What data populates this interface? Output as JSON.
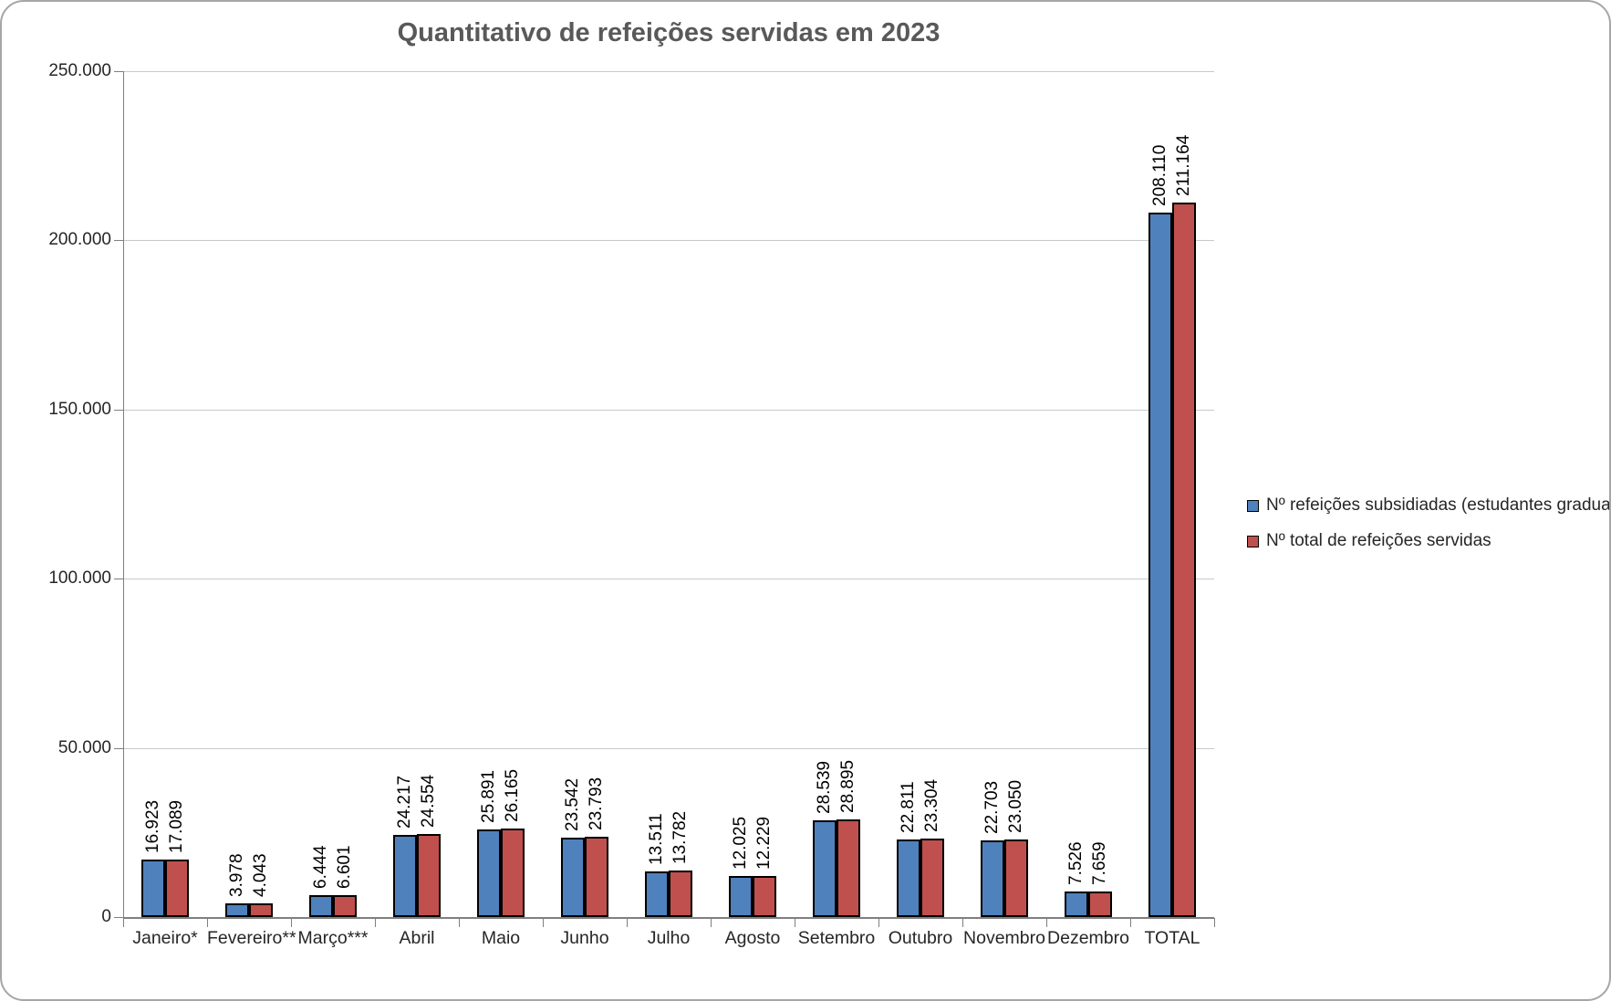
{
  "chart_data": {
    "type": "bar",
    "title": "Quantitativo de refeições servidas em 2023",
    "categories": [
      "Janeiro*",
      "Fevereiro**",
      "Março***",
      "Abril",
      "Maio",
      "Junho",
      "Julho",
      "Agosto",
      "Setembro",
      "Outubro",
      "Novembro",
      "Dezembro",
      "TOTAL"
    ],
    "series": [
      {
        "name": "Nº refeições subsidiadas (estudantes graduação)",
        "color": "#4F81BD",
        "values": [
          16923,
          3978,
          6444,
          24217,
          25891,
          23542,
          13511,
          12025,
          28539,
          22811,
          22703,
          7526,
          208110
        ],
        "labels": [
          "16.923",
          "3.978",
          "6.444",
          "24.217",
          "25.891",
          "23.542",
          "13.511",
          "12.025",
          "28.539",
          "22.811",
          "22.703",
          "7.526",
          "208.110"
        ]
      },
      {
        "name": "Nº total de refeições servidas",
        "color": "#C0504D",
        "values": [
          17089,
          4043,
          6601,
          24554,
          26165,
          23793,
          13782,
          12229,
          28895,
          23304,
          23050,
          7659,
          211164
        ],
        "labels": [
          "17.089",
          "4.043",
          "6.601",
          "24.554",
          "26.165",
          "23.793",
          "13.782",
          "12.229",
          "28.895",
          "23.304",
          "23.050",
          "7.659",
          "211.164"
        ]
      }
    ],
    "ylim": [
      0,
      250000
    ],
    "yticks": [
      0,
      50000,
      100000,
      150000,
      200000,
      250000
    ],
    "ytick_labels": [
      "0",
      "50.000",
      "100.000",
      "150.000",
      "200.000",
      "250.000"
    ],
    "xlabel": "",
    "ylabel": "",
    "grid": true,
    "legend_position": "right",
    "bar_border_color": "#000000",
    "axis_color": "#7f7f7f",
    "gridline_color": "#c9c9c9",
    "title_color": "#595959"
  }
}
